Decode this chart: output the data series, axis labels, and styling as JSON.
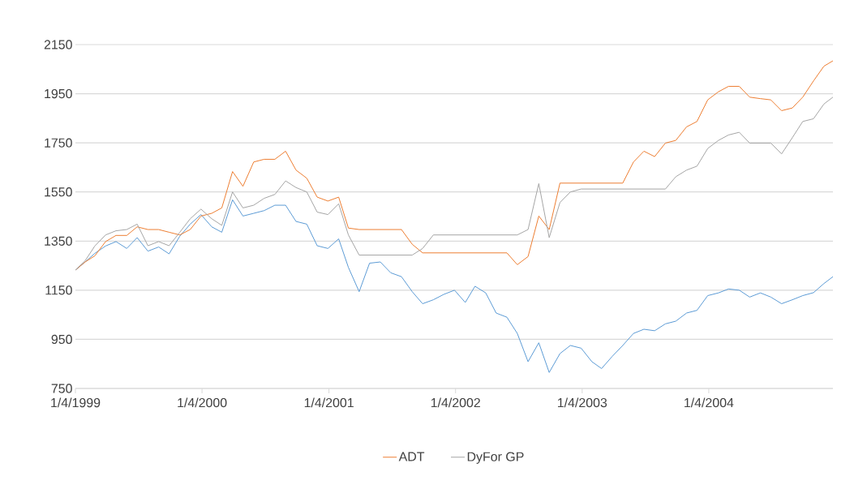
{
  "chart_data": {
    "type": "line",
    "x": [
      "1999-01-04",
      "1999-02-01",
      "1999-03-01",
      "1999-04-01",
      "1999-05-01",
      "1999-06-01",
      "1999-07-01",
      "1999-08-01",
      "1999-09-01",
      "1999-10-01",
      "1999-11-01",
      "1999-12-01",
      "2000-01-01",
      "2000-02-01",
      "2000-03-01",
      "2000-04-01",
      "2000-05-01",
      "2000-06-01",
      "2000-07-01",
      "2000-08-01",
      "2000-09-01",
      "2000-10-01",
      "2000-11-01",
      "2000-12-01",
      "2001-01-01",
      "2001-02-01",
      "2001-03-01",
      "2001-04-01",
      "2001-05-01",
      "2001-06-01",
      "2001-07-01",
      "2001-08-01",
      "2001-09-01",
      "2001-10-01",
      "2001-11-01",
      "2001-12-01",
      "2002-01-01",
      "2002-02-01",
      "2002-03-01",
      "2002-04-01",
      "2002-05-01",
      "2002-06-01",
      "2002-07-01",
      "2002-08-01",
      "2002-09-01",
      "2002-10-01",
      "2002-11-01",
      "2002-12-01",
      "2003-01-01",
      "2003-02-01",
      "2003-03-01",
      "2003-04-01",
      "2003-05-01",
      "2003-06-01",
      "2003-07-01",
      "2003-08-01",
      "2003-09-01",
      "2003-10-01",
      "2003-11-01",
      "2003-12-01",
      "2004-01-01",
      "2004-02-01",
      "2004-03-01",
      "2004-04-01",
      "2004-05-01",
      "2004-06-01",
      "2004-07-01",
      "2004-08-01",
      "2004-09-01",
      "2004-10-01",
      "2004-11-01",
      "2004-12-01",
      "2004-12-27"
    ],
    "series": [
      {
        "color": "#5b9bd5",
        "values": [
          1232,
          1265,
          1300,
          1330,
          1348,
          1320,
          1364,
          1309,
          1326,
          1298,
          1370,
          1419,
          1458,
          1408,
          1386,
          1518,
          1452,
          1463,
          1474,
          1496,
          1496,
          1430,
          1419,
          1331,
          1320,
          1359,
          1243,
          1144,
          1260,
          1265,
          1221,
          1205,
          1144,
          1095,
          1111,
          1133,
          1150,
          1100,
          1166,
          1139,
          1057,
          1040,
          974,
          859,
          936,
          815,
          892,
          925,
          914,
          859,
          831,
          881,
          925,
          974,
          991,
          985,
          1013,
          1024,
          1057,
          1068,
          1128,
          1139,
          1155,
          1150,
          1122,
          1139,
          1122,
          1095,
          1111,
          1128,
          1140,
          1177,
          1205
        ]
      },
      {
        "name": "ADT",
        "color": "#ed7d31",
        "values": [
          1232,
          1265,
          1290,
          1348,
          1373,
          1373,
          1408,
          1397,
          1397,
          1386,
          1375,
          1397,
          1452,
          1463,
          1485,
          1633,
          1573,
          1672,
          1683,
          1683,
          1716,
          1639,
          1606,
          1529,
          1513,
          1529,
          1403,
          1397,
          1397,
          1397,
          1397,
          1397,
          1337,
          1302,
          1302,
          1302,
          1302,
          1302,
          1302,
          1302,
          1302,
          1302,
          1254,
          1287,
          1452,
          1397,
          1586,
          1586,
          1586,
          1586,
          1586,
          1586,
          1586,
          1672,
          1716,
          1694,
          1749,
          1760,
          1815,
          1837,
          1925,
          1958,
          1980,
          1980,
          1936,
          1930,
          1925,
          1881,
          1892,
          1936,
          2002,
          2062,
          2084
        ]
      },
      {
        "name": "DyFor GP",
        "color": "#a5a5a5",
        "values": [
          1232,
          1270,
          1330,
          1375,
          1392,
          1397,
          1419,
          1331,
          1348,
          1331,
          1386,
          1441,
          1480,
          1441,
          1414,
          1550,
          1485,
          1496,
          1524,
          1540,
          1595,
          1568,
          1550,
          1468,
          1458,
          1502,
          1375,
          1293,
          1293,
          1293,
          1293,
          1293,
          1293,
          1320,
          1375,
          1375,
          1375,
          1375,
          1375,
          1375,
          1375,
          1375,
          1375,
          1397,
          1584,
          1364,
          1507,
          1550,
          1562,
          1562,
          1562,
          1562,
          1562,
          1562,
          1562,
          1562,
          1562,
          1612,
          1639,
          1655,
          1727,
          1760,
          1782,
          1793,
          1749,
          1749,
          1749,
          1705,
          1771,
          1837,
          1848,
          1908,
          1936
        ]
      }
    ],
    "xlim": [
      "1999-01-04",
      "2004-12-27"
    ],
    "xticks": [
      {
        "value": "1999-01-04",
        "label": "1/4/1999"
      },
      {
        "value": "2000-01-04",
        "label": "1/4/2000"
      },
      {
        "value": "2001-01-04",
        "label": "1/4/2001"
      },
      {
        "value": "2002-01-04",
        "label": "1/4/2002"
      },
      {
        "value": "2003-01-04",
        "label": "1/4/2003"
      },
      {
        "value": "2004-01-04",
        "label": "1/4/2004"
      }
    ],
    "ylim": [
      750,
      2150
    ],
    "yticks": [
      750,
      950,
      1150,
      1350,
      1550,
      1750,
      1950,
      2150
    ],
    "grid": "y",
    "legend": "bottom",
    "marker": "none",
    "line_style": "solid"
  }
}
